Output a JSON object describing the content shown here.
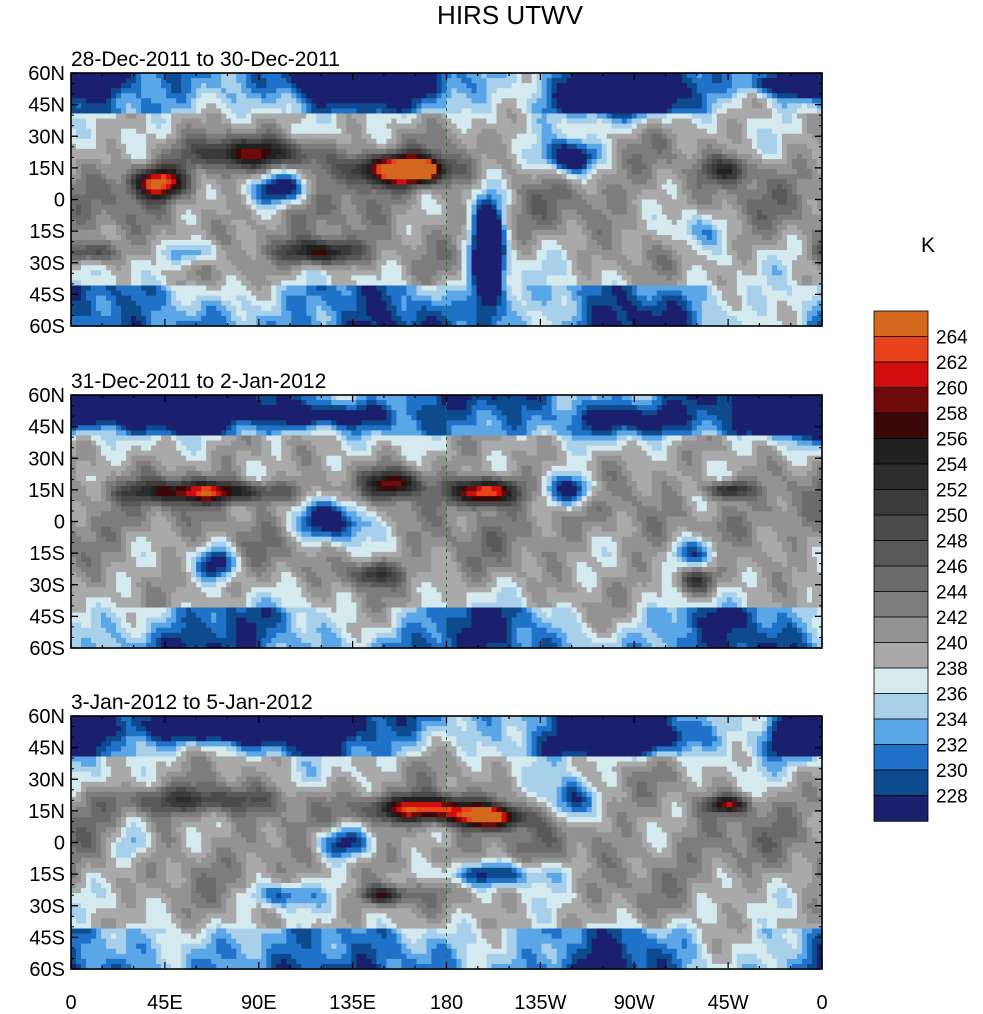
{
  "chart_data": {
    "type": "heatmap",
    "title": "HIRS UTWV",
    "colorbar_label": "K",
    "x_ticks": [
      "0",
      "45E",
      "90E",
      "135E",
      "180",
      "135W",
      "90W",
      "45W",
      "0"
    ],
    "y_ticks": [
      "60N",
      "45N",
      "30N",
      "15N",
      "0",
      "15S",
      "30S",
      "45S",
      "60S"
    ],
    "x_range": [
      0,
      360
    ],
    "y_range": [
      -60,
      60
    ],
    "levels": [
      "228",
      "230",
      "232",
      "234",
      "236",
      "238",
      "240",
      "242",
      "244",
      "246",
      "248",
      "250",
      "252",
      "254",
      "256",
      "258",
      "260",
      "262",
      "264"
    ],
    "colors": [
      "#1a1f6e",
      "#0e4b8e",
      "#1f72c8",
      "#5aa6e6",
      "#a9d0ea",
      "#d4eaef",
      "#a9a9a9",
      "#939393",
      "#7d7d7d",
      "#6b6b6b",
      "#595959",
      "#4a4a4a",
      "#3b3b3b",
      "#2d2d2d",
      "#202020",
      "#3a0808",
      "#6e0a0a",
      "#d10d0d",
      "#e8421b",
      "#d2691e"
    ],
    "panels": [
      {
        "label": "28-Dec-2011 to 30-Dec-2011",
        "blobs": [
          {
            "lon": 158,
            "lat": 14,
            "rx": 22,
            "ry": 7,
            "v": 14
          },
          {
            "lon": 165,
            "lat": 14,
            "rx": 8,
            "ry": 4,
            "v": 17
          },
          {
            "lon": 42,
            "lat": 8,
            "rx": 12,
            "ry": 7,
            "v": 12
          },
          {
            "lon": 90,
            "lat": 22,
            "rx": 30,
            "ry": 7,
            "v": 8
          },
          {
            "lon": 120,
            "lat": -25,
            "rx": 18,
            "ry": 6,
            "v": 10
          },
          {
            "lon": 10,
            "lat": -25,
            "rx": 12,
            "ry": 5,
            "v": 6
          },
          {
            "lon": 315,
            "lat": 14,
            "rx": 12,
            "ry": 6,
            "v": 6
          },
          {
            "lon": 200,
            "lat": -25,
            "rx": 8,
            "ry": 30,
            "v": -12
          },
          {
            "lon": 100,
            "lat": 5,
            "rx": 15,
            "ry": 8,
            "v": -8
          },
          {
            "lon": 260,
            "lat": 48,
            "rx": 30,
            "ry": 10,
            "v": -7
          },
          {
            "lon": 350,
            "lat": 55,
            "rx": 25,
            "ry": 6,
            "v": -10
          },
          {
            "lon": 135,
            "lat": 55,
            "rx": 30,
            "ry": 8,
            "v": -8
          },
          {
            "lon": 240,
            "lat": 20,
            "rx": 12,
            "ry": 8,
            "v": -9
          },
          {
            "lon": 60,
            "lat": -25,
            "rx": 12,
            "ry": 6,
            "v": -5
          },
          {
            "lon": 300,
            "lat": -15,
            "rx": 15,
            "ry": 10,
            "v": -4
          }
        ]
      },
      {
        "label": "31-Dec-2011 to 2-Jan-2012",
        "blobs": [
          {
            "lon": 65,
            "lat": 14,
            "rx": 35,
            "ry": 5,
            "v": 10
          },
          {
            "lon": 198,
            "lat": 14,
            "rx": 15,
            "ry": 6,
            "v": 14
          },
          {
            "lon": 155,
            "lat": 18,
            "rx": 12,
            "ry": 6,
            "v": 9
          },
          {
            "lon": 315,
            "lat": 15,
            "rx": 10,
            "ry": 4,
            "v": 8
          },
          {
            "lon": 145,
            "lat": -25,
            "rx": 12,
            "ry": 6,
            "v": 7
          },
          {
            "lon": 300,
            "lat": -28,
            "rx": 8,
            "ry": 6,
            "v": 6
          },
          {
            "lon": 30,
            "lat": 55,
            "rx": 45,
            "ry": 8,
            "v": -10
          },
          {
            "lon": 120,
            "lat": 50,
            "rx": 30,
            "ry": 6,
            "v": -6
          },
          {
            "lon": 125,
            "lat": 0,
            "rx": 18,
            "ry": 10,
            "v": -9
          },
          {
            "lon": 70,
            "lat": -20,
            "rx": 10,
            "ry": 8,
            "v": -7
          },
          {
            "lon": 240,
            "lat": 15,
            "rx": 12,
            "ry": 8,
            "v": -8
          },
          {
            "lon": 300,
            "lat": -15,
            "rx": 12,
            "ry": 8,
            "v": -7
          },
          {
            "lon": 350,
            "lat": 50,
            "rx": 20,
            "ry": 10,
            "v": -9
          },
          {
            "lon": 270,
            "lat": 48,
            "rx": 30,
            "ry": 8,
            "v": -5
          }
        ]
      },
      {
        "label": "3-Jan-2012 to 5-Jan-2012",
        "blobs": [
          {
            "lon": 170,
            "lat": 16,
            "rx": 25,
            "ry": 6,
            "v": 12
          },
          {
            "lon": 200,
            "lat": 12,
            "rx": 15,
            "ry": 5,
            "v": 13
          },
          {
            "lon": 315,
            "lat": 18,
            "rx": 10,
            "ry": 4,
            "v": 9
          },
          {
            "lon": 150,
            "lat": -25,
            "rx": 10,
            "ry": 4,
            "v": 8
          },
          {
            "lon": 60,
            "lat": 20,
            "rx": 40,
            "ry": 6,
            "v": 5
          },
          {
            "lon": 80,
            "lat": 55,
            "rx": 45,
            "ry": 7,
            "v": -10
          },
          {
            "lon": 200,
            "lat": -15,
            "rx": 30,
            "ry": 6,
            "v": -6
          },
          {
            "lon": 130,
            "lat": 0,
            "rx": 15,
            "ry": 8,
            "v": -8
          },
          {
            "lon": 240,
            "lat": 20,
            "rx": 10,
            "ry": 10,
            "v": -7
          },
          {
            "lon": 30,
            "lat": 0,
            "rx": 10,
            "ry": 10,
            "v": -5
          },
          {
            "lon": 350,
            "lat": 50,
            "rx": 15,
            "ry": 10,
            "v": -8
          },
          {
            "lon": 270,
            "lat": 50,
            "rx": 30,
            "ry": 8,
            "v": -6
          },
          {
            "lon": 100,
            "lat": -25,
            "rx": 15,
            "ry": 6,
            "v": -5
          }
        ]
      }
    ]
  }
}
